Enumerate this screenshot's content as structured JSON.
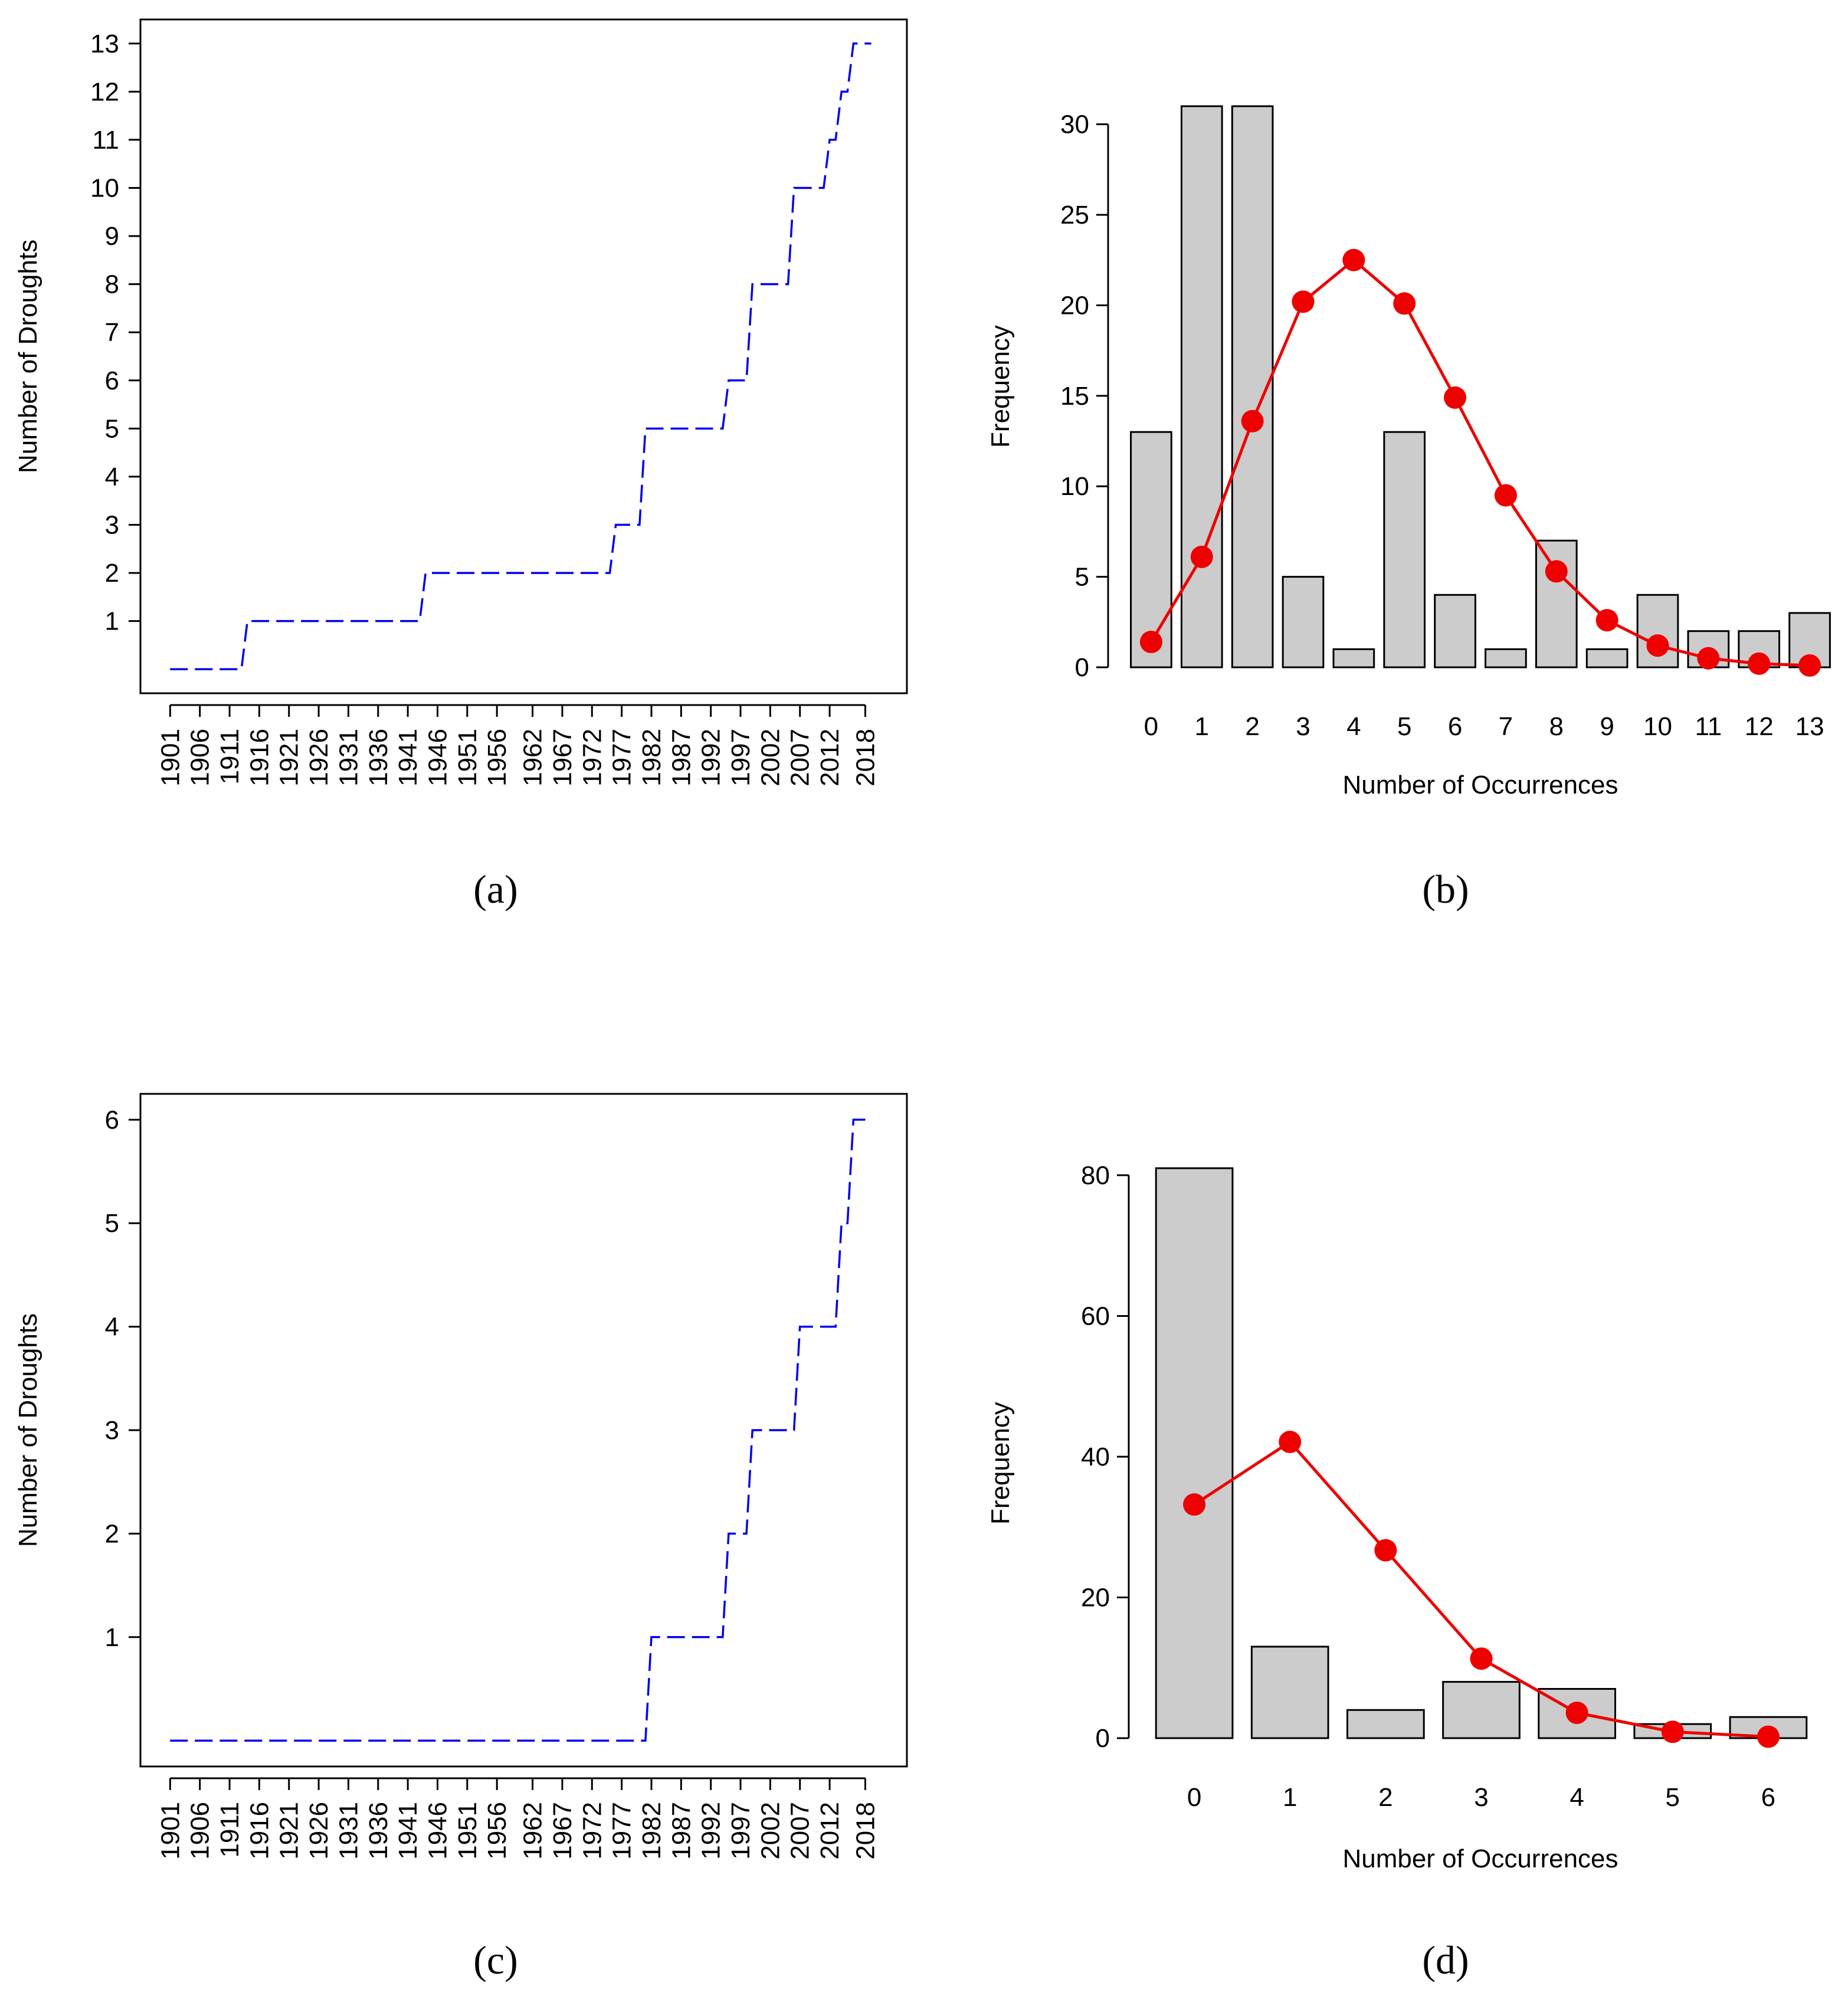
{
  "captions": [
    "(a)",
    "(b)",
    "(c)",
    "(d)"
  ],
  "chart_data": [
    {
      "panel": "(a)",
      "type": "line",
      "style": "dashed step",
      "color": "#0000ee",
      "ylabel": "Number of Droughts",
      "xlabel": "",
      "ylim": [
        -0.5,
        13.5
      ],
      "yticks": [
        1,
        2,
        3,
        4,
        5,
        6,
        7,
        8,
        9,
        10,
        11,
        12,
        13
      ],
      "xlim": [
        1896,
        2025
      ],
      "xticks": [
        1901,
        1906,
        1911,
        1916,
        1921,
        1926,
        1931,
        1936,
        1941,
        1946,
        1951,
        1956,
        1962,
        1967,
        1972,
        1977,
        1982,
        1987,
        1992,
        1997,
        2002,
        2007,
        2012,
        2018
      ],
      "x": [
        1901,
        1913,
        1914,
        1943,
        1944,
        1975,
        1976,
        1980,
        1981,
        1994,
        1995,
        1998,
        1999,
        2005,
        2006,
        2011,
        2012,
        2013,
        2014,
        2015,
        2016,
        2019
      ],
      "y": [
        0,
        0,
        1,
        1,
        2,
        2,
        3,
        3,
        5,
        5,
        6,
        6,
        8,
        8,
        10,
        10,
        11,
        11,
        12,
        12,
        13,
        13
      ]
    },
    {
      "panel": "(b)",
      "type": "bar",
      "xlabel": "Number of Occurrences",
      "ylabel": "Frequency",
      "ylim": [
        0,
        31
      ],
      "yticks": [
        0,
        5,
        10,
        15,
        20,
        25,
        30
      ],
      "categories": [
        "0",
        "1",
        "2",
        "3",
        "4",
        "5",
        "6",
        "7",
        "8",
        "9",
        "10",
        "11",
        "12",
        "13"
      ],
      "series": [
        {
          "type": "bar",
          "color": "#cccccc",
          "values": [
            13,
            31,
            31,
            5,
            1,
            13,
            4,
            1,
            7,
            1,
            4,
            2,
            2,
            3
          ]
        },
        {
          "type": "line",
          "color": "#ee0000",
          "values": [
            1.4,
            6.1,
            13.6,
            20.2,
            22.5,
            20.1,
            14.9,
            9.5,
            5.3,
            2.6,
            1.2,
            0.5,
            0.2,
            0.1
          ]
        }
      ]
    },
    {
      "panel": "(c)",
      "type": "line",
      "style": "dashed step",
      "color": "#0000ee",
      "ylabel": "Number of Droughts",
      "xlabel": "",
      "ylim": [
        -0.25,
        6.25
      ],
      "yticks": [
        1,
        2,
        3,
        4,
        5,
        6
      ],
      "xlim": [
        1896,
        2025
      ],
      "xticks": [
        1901,
        1906,
        1911,
        1916,
        1921,
        1926,
        1931,
        1936,
        1941,
        1946,
        1951,
        1956,
        1962,
        1967,
        1972,
        1977,
        1982,
        1987,
        1992,
        1997,
        2002,
        2007,
        2012,
        2018
      ],
      "x": [
        1901,
        1981,
        1982,
        1994,
        1995,
        1998,
        1999,
        2006,
        2007,
        2013,
        2014,
        2015,
        2016,
        2019
      ],
      "y": [
        0,
        0,
        1,
        1,
        2,
        2,
        3,
        3,
        4,
        4,
        5,
        5,
        6,
        6
      ]
    },
    {
      "panel": "(d)",
      "type": "bar",
      "xlabel": "Number of Occurrences",
      "ylabel": "Frequency",
      "ylim": [
        0,
        81
      ],
      "yticks": [
        0,
        20,
        40,
        60,
        80
      ],
      "categories": [
        "0",
        "1",
        "2",
        "3",
        "4",
        "5",
        "6"
      ],
      "series": [
        {
          "type": "bar",
          "color": "#cccccc",
          "values": [
            81,
            13,
            4,
            8,
            7,
            2,
            3
          ]
        },
        {
          "type": "line",
          "color": "#ee0000",
          "values": [
            33.2,
            42.1,
            26.7,
            11.3,
            3.6,
            0.9,
            0.2
          ]
        }
      ]
    }
  ]
}
